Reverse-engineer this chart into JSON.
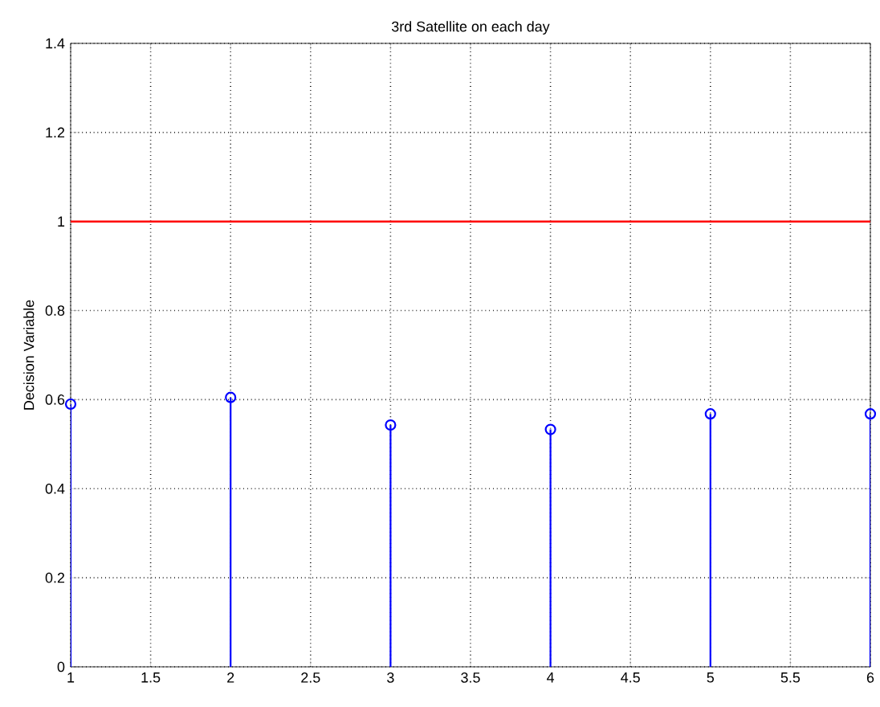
{
  "chart_data": {
    "type": "lollipop",
    "title": "3rd Satellite on each day",
    "ylabel": "Decision Variable",
    "x": [
      1,
      2,
      3,
      4,
      5,
      6
    ],
    "series": [
      {
        "color": "#0000ff",
        "values": [
          0.59,
          0.605,
          0.543,
          0.533,
          0.568,
          0.568
        ]
      }
    ],
    "xlim": [
      1,
      6
    ],
    "ylim": [
      0,
      1.4
    ],
    "xticks": [
      1,
      1.5,
      2,
      2.5,
      3,
      3.5,
      4,
      4.5,
      5,
      5.5,
      6
    ],
    "yticks": [
      0,
      0.2,
      0.4,
      0.6,
      0.8,
      1,
      1.2,
      1.4
    ],
    "ref_lines": [
      {
        "axis": "y",
        "value": 1,
        "color": "#ff0000"
      }
    ],
    "grid": true,
    "marker": "circle",
    "line_style": "solid"
  }
}
